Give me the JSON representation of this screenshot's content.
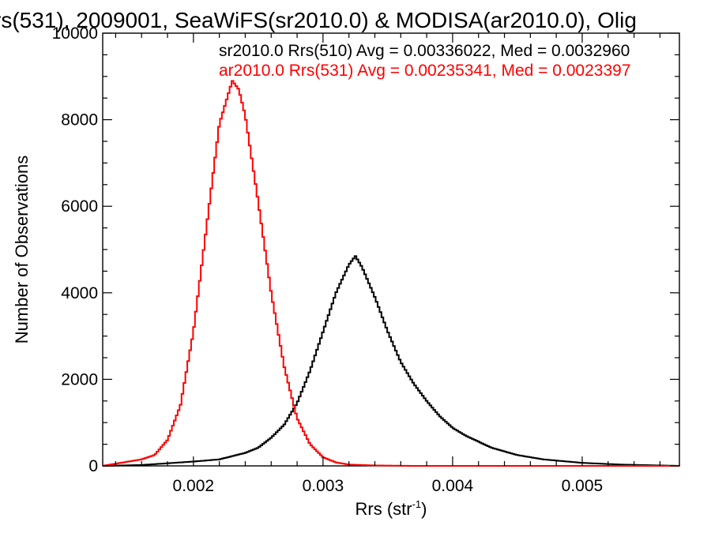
{
  "chart_data": {
    "type": "line",
    "title": "rs(531), 2009001, SeaWiFS(sr2010.0) & MODISA(ar2010.0), Olig",
    "xlabel": "Rrs (str",
    "xlabel_sup": "-1",
    "xlabel_close": ")",
    "ylabel": "Number of Observations",
    "xlim": [
      0.0013,
      0.00575
    ],
    "ylim": [
      0,
      10000
    ],
    "x_ticks": [
      0.002,
      0.003,
      0.004,
      0.005
    ],
    "x_tick_labels": [
      "0.002",
      "0.003",
      "0.004",
      "0.005"
    ],
    "y_ticks": [
      0,
      2000,
      4000,
      6000,
      8000,
      10000
    ],
    "y_tick_labels": [
      "0",
      "2000",
      "4000",
      "6000",
      "8000",
      "10000"
    ],
    "grid": false,
    "legend_placement": "top-right",
    "series": [
      {
        "name": "sr2010.0 Rrs(510) Avg = 0.00336022, Med = 0.0032960",
        "color": "#000000",
        "x": [
          0.0013,
          0.0016,
          0.0018,
          0.002,
          0.0022,
          0.0024,
          0.0025,
          0.0026,
          0.0027,
          0.0028,
          0.0029,
          0.003,
          0.0031,
          0.0032,
          0.00325,
          0.0033,
          0.0034,
          0.0035,
          0.0036,
          0.0037,
          0.0038,
          0.0039,
          0.004,
          0.0041,
          0.0042,
          0.0043,
          0.0045,
          0.0047,
          0.005,
          0.0053,
          0.00575
        ],
        "y": [
          0,
          20,
          60,
          100,
          150,
          300,
          420,
          650,
          950,
          1450,
          2200,
          3100,
          4000,
          4650,
          4850,
          4600,
          3900,
          3100,
          2400,
          1900,
          1500,
          1150,
          880,
          700,
          560,
          420,
          250,
          150,
          70,
          30,
          0
        ]
      },
      {
        "name": "ar2010.0 Rrs(531) Avg = 0.00235341, Med = 0.0023397",
        "color": "#ff0000",
        "x": [
          0.0013,
          0.0015,
          0.0016,
          0.0017,
          0.0018,
          0.0019,
          0.002,
          0.0021,
          0.0022,
          0.0023,
          0.00235,
          0.0024,
          0.0025,
          0.0026,
          0.0027,
          0.0028,
          0.0029,
          0.003,
          0.0031,
          0.0032,
          0.0034,
          0.0037,
          0.0042,
          0.00575
        ],
        "y": [
          0,
          100,
          150,
          250,
          600,
          1400,
          3100,
          5500,
          7900,
          8900,
          8700,
          8100,
          6100,
          4000,
          2300,
          1100,
          500,
          200,
          80,
          30,
          10,
          0,
          0,
          0
        ]
      }
    ]
  }
}
